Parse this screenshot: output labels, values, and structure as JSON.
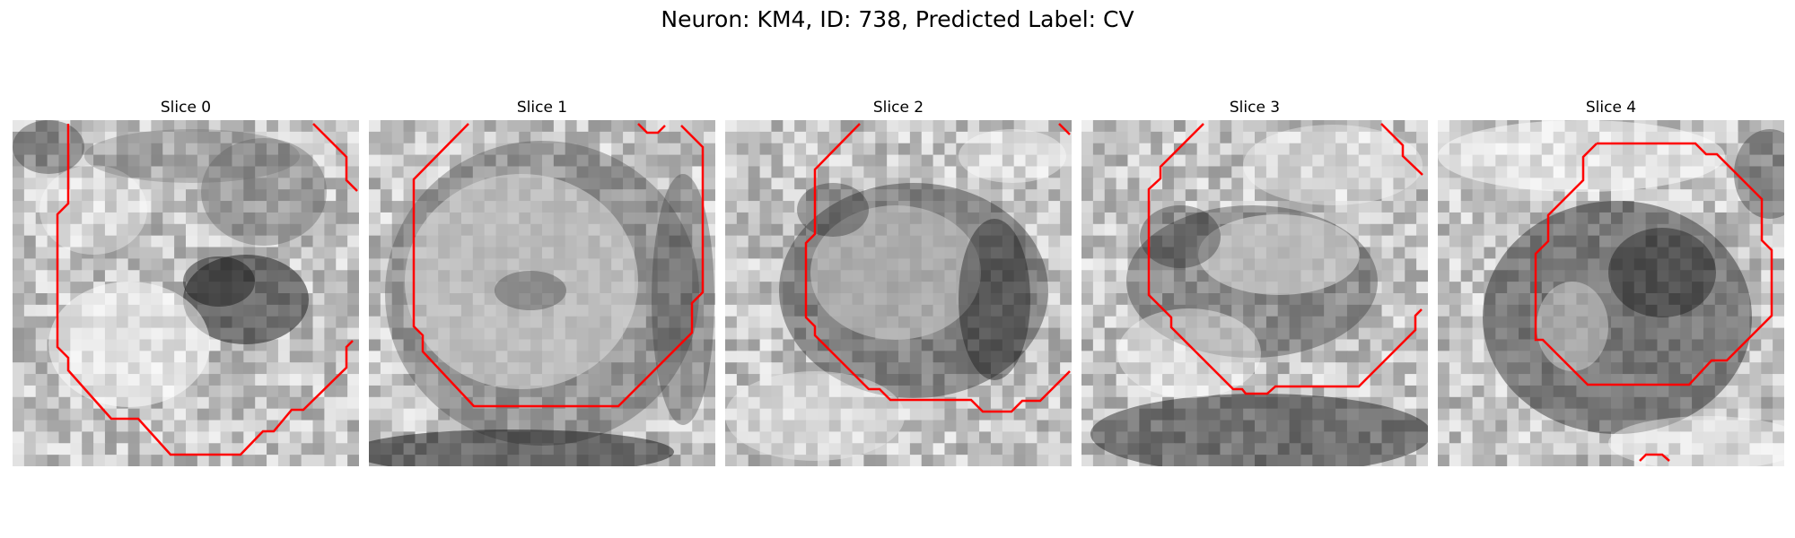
{
  "figure": {
    "title": "Neuron: KM4, ID: 738, Predicted Label: CV",
    "colors": {
      "contour": "#ff0000",
      "background": "#ffffff"
    },
    "panels": [
      {
        "title": "Slice 0",
        "contour_icon": "red-contour-polyline"
      },
      {
        "title": "Slice 1",
        "contour_icon": "red-contour-polyline"
      },
      {
        "title": "Slice 2",
        "contour_icon": "red-contour-polyline"
      },
      {
        "title": "Slice 3",
        "contour_icon": "red-contour-polyline"
      },
      {
        "title": "Slice 4",
        "contour_icon": "red-contour-polyline"
      }
    ]
  }
}
